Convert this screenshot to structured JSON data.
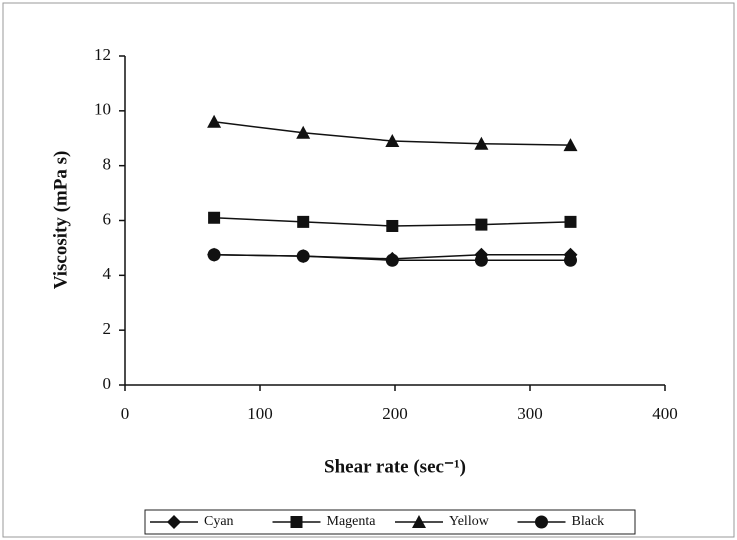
{
  "chart_data": {
    "type": "line",
    "xlabel": "Shear rate (sec⁻¹)",
    "ylabel": "Viscosity (mPa s)",
    "x": [
      66,
      132,
      198,
      264,
      330
    ],
    "series": [
      {
        "name": "Cyan",
        "color": "#111111",
        "marker": "diamond",
        "values": [
          4.75,
          4.7,
          4.6,
          4.75,
          4.75
        ]
      },
      {
        "name": "Magenta",
        "color": "#111111",
        "marker": "square",
        "values": [
          6.1,
          5.95,
          5.8,
          5.85,
          5.95
        ]
      },
      {
        "name": "Yellow",
        "color": "#111111",
        "marker": "triangle",
        "values": [
          9.6,
          9.2,
          8.9,
          8.8,
          8.75
        ]
      },
      {
        "name": "Black",
        "color": "#111111",
        "marker": "circle",
        "values": [
          4.75,
          4.7,
          4.55,
          4.55,
          4.55
        ]
      }
    ],
    "xlim": [
      0,
      400
    ],
    "xticks": [
      0,
      100,
      200,
      300,
      400
    ],
    "ylim": [
      0,
      12
    ],
    "yticks": [
      0,
      2,
      4,
      6,
      8,
      10,
      12
    ],
    "legend": "bottom"
  }
}
